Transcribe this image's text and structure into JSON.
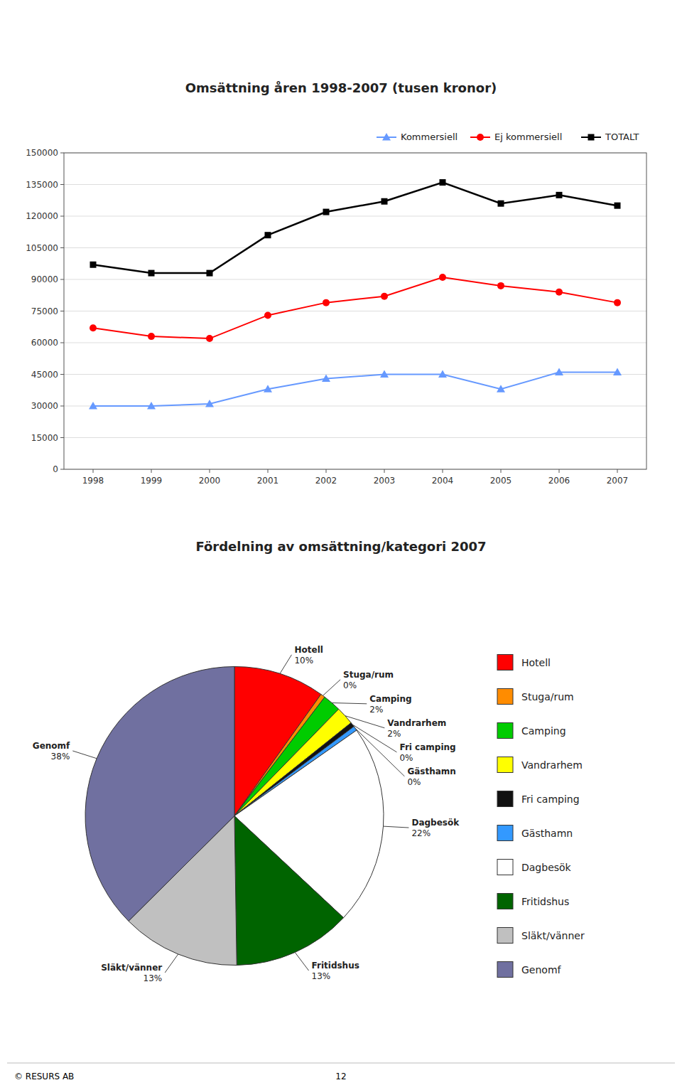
{
  "chart_data": [
    {
      "type": "line",
      "title": "Omsättning åren 1998-2007 (tusen kronor)",
      "x": [
        1998,
        1999,
        2000,
        2001,
        2002,
        2003,
        2004,
        2005,
        2006,
        2007
      ],
      "xlim": [
        1997.5,
        2007.5
      ],
      "xticks": [
        1998,
        1999,
        2000,
        2001,
        2002,
        2003,
        2004,
        2005,
        2006,
        2007
      ],
      "ylim": [
        0,
        150000
      ],
      "yticks": [
        0,
        15000,
        30000,
        45000,
        60000,
        75000,
        90000,
        105000,
        120000,
        135000,
        150000
      ],
      "grid": true,
      "legend": "upper right",
      "series": [
        {
          "name": "Kommersiell",
          "color": "#6699FF",
          "marker": "triangle",
          "values": [
            30000,
            30000,
            31000,
            38000,
            43000,
            45000,
            45000,
            38000,
            46000,
            46000
          ]
        },
        {
          "name": "Ej kommersiell",
          "color": "#FF0000",
          "marker": "circle",
          "values": [
            67000,
            63000,
            62000,
            73000,
            79000,
            82000,
            91000,
            87000,
            84000,
            79000
          ]
        },
        {
          "name": "TOTALT",
          "color": "#000000",
          "marker": "square",
          "values": [
            97000,
            93000,
            93000,
            111000,
            122000,
            127000,
            136000,
            126000,
            130000,
            125000
          ]
        }
      ]
    },
    {
      "type": "pie",
      "title": "Fördelning av omsättning/kategori 2007",
      "categories": [
        "Hotell",
        "Stuga/rum",
        "Camping",
        "Vandrarhem",
        "Fri camping",
        "Gästhamn",
        "Dagbesök",
        "Fritidshus",
        "Släkt/vänner",
        "Genomf"
      ],
      "values": [
        10,
        0.5,
        2,
        2,
        0.5,
        0.5,
        22,
        13,
        13,
        38
      ],
      "value_labels": [
        "10%",
        "0%",
        "2%",
        "2%",
        "0%",
        "0%",
        "22%",
        "13%",
        "13%",
        "38%"
      ],
      "colors": [
        "#FF0000",
        "#FF8C00",
        "#00CC00",
        "#FFFF00",
        "#111111",
        "#3399FF",
        "#FFFFFF",
        "#006400",
        "#C0C0C0",
        "#7070A0"
      ],
      "data_labels": true,
      "legend": "right"
    }
  ],
  "footer": [
    "© RESURS AB",
    "12"
  ]
}
